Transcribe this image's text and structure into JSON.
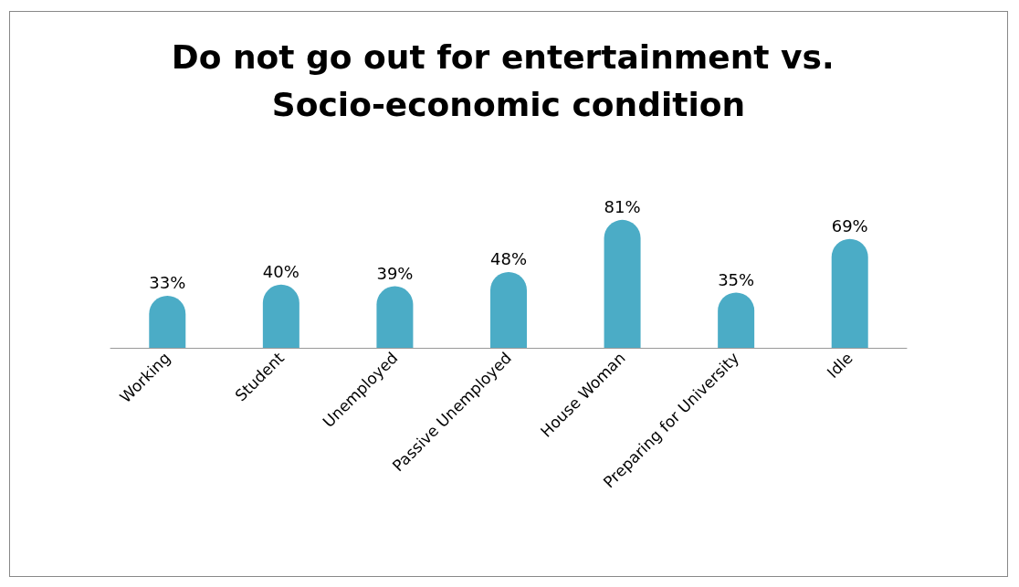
{
  "chart_data": {
    "type": "bar",
    "title": "Do not go out for entertainment vs. Socio-economic condition",
    "categories": [
      "Working",
      "Student",
      "Unemployed",
      "Passive Unemployed",
      "House Woman",
      "Preparing for University",
      "Idle"
    ],
    "values": [
      33,
      40,
      39,
      48,
      81,
      35,
      69
    ],
    "value_labels": [
      "33%",
      "40%",
      "39%",
      "48%",
      "81%",
      "35%",
      "69%"
    ],
    "color": "#4bacc6"
  }
}
